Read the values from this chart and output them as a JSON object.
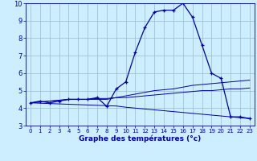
{
  "hours": [
    0,
    1,
    2,
    3,
    4,
    5,
    6,
    7,
    8,
    9,
    10,
    11,
    12,
    13,
    14,
    15,
    16,
    17,
    18,
    19,
    20,
    21,
    22,
    23
  ],
  "temp": [
    4.3,
    4.4,
    4.3,
    4.4,
    4.5,
    4.5,
    4.5,
    4.6,
    4.1,
    5.1,
    5.5,
    7.2,
    8.6,
    9.5,
    9.6,
    9.6,
    10.0,
    9.2,
    7.6,
    6.0,
    5.7,
    3.5,
    3.5,
    3.4
  ],
  "line1": [
    4.3,
    4.35,
    4.4,
    4.45,
    4.5,
    4.5,
    4.5,
    4.5,
    4.5,
    4.6,
    4.6,
    4.65,
    4.7,
    4.75,
    4.8,
    4.85,
    4.9,
    4.95,
    5.0,
    5.0,
    5.05,
    5.1,
    5.1,
    5.15
  ],
  "line2": [
    4.3,
    4.35,
    4.4,
    4.45,
    4.5,
    4.5,
    4.5,
    4.55,
    4.55,
    4.6,
    4.7,
    4.8,
    4.9,
    5.0,
    5.05,
    5.1,
    5.2,
    5.3,
    5.35,
    5.4,
    5.45,
    5.5,
    5.55,
    5.6
  ],
  "line3": [
    4.3,
    4.28,
    4.26,
    4.24,
    4.22,
    4.2,
    4.18,
    4.16,
    4.14,
    4.12,
    4.05,
    4.0,
    3.95,
    3.9,
    3.85,
    3.8,
    3.75,
    3.7,
    3.65,
    3.6,
    3.55,
    3.5,
    3.45,
    3.4
  ],
  "bg_color": "#cceeff",
  "grid_color": "#99bbcc",
  "line_color": "#0000aa",
  "marker": "+",
  "xlabel": "Graphe des températures (°c)",
  "ylim": [
    3,
    10
  ],
  "xlim": [
    -0.5,
    23.5
  ],
  "yticks": [
    3,
    4,
    5,
    6,
    7,
    8,
    9,
    10
  ],
  "xticks": [
    0,
    1,
    2,
    3,
    4,
    5,
    6,
    7,
    8,
    9,
    10,
    11,
    12,
    13,
    14,
    15,
    16,
    17,
    18,
    19,
    20,
    21,
    22,
    23
  ]
}
